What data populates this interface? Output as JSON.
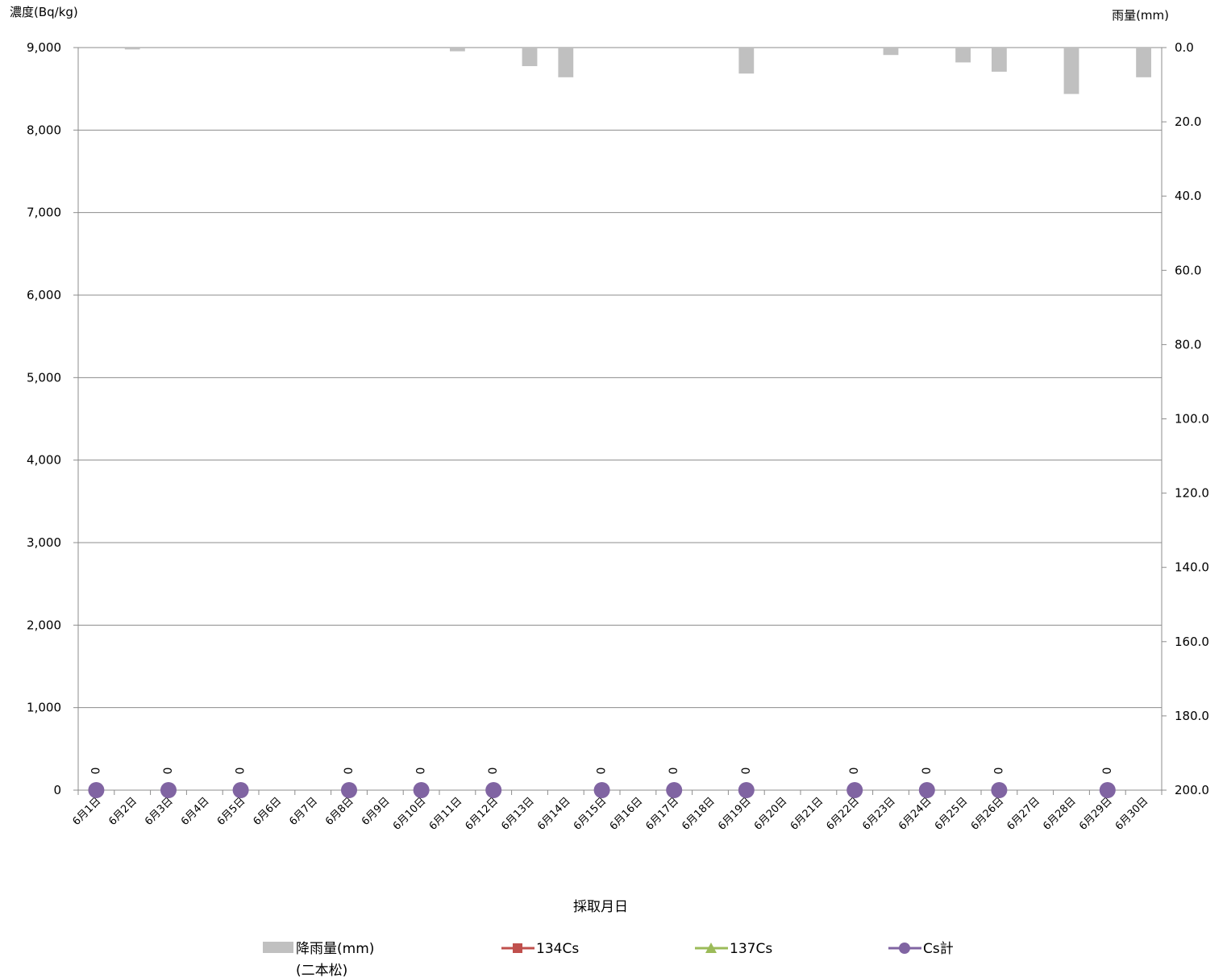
{
  "chart_data": {
    "type": "bar",
    "title": "",
    "xlabel": "採取月日",
    "ylabel_left": "濃度(Bq/kg)",
    "ylabel_right": "雨量(mm)",
    "y_left_range": [
      0,
      9000
    ],
    "y_left_ticks": [
      "0",
      "1,000",
      "2,000",
      "3,000",
      "4,000",
      "5,000",
      "6,000",
      "7,000",
      "8,000",
      "9,000"
    ],
    "y_right_range": [
      0,
      200
    ],
    "y_right_reversed": true,
    "y_right_ticks": [
      "0.0",
      "20.0",
      "40.0",
      "60.0",
      "80.0",
      "100.0",
      "120.0",
      "140.0",
      "160.0",
      "180.0",
      "200.0"
    ],
    "grid": true,
    "legend_position": "bottom",
    "categories": [
      "6月1日",
      "6月2日",
      "6月3日",
      "6月4日",
      "6月5日",
      "6月6日",
      "6月7日",
      "6月8日",
      "6月9日",
      "6月10日",
      "6月11日",
      "6月12日",
      "6月13日",
      "6月14日",
      "6月15日",
      "6月16日",
      "6月17日",
      "6月18日",
      "6月19日",
      "6月20日",
      "6月21日",
      "6月22日",
      "6月23日",
      "6月24日",
      "6月25日",
      "6月26日",
      "6月27日",
      "6月28日",
      "6月29日",
      "6月30日"
    ],
    "series": [
      {
        "name": "降雨量(mm)",
        "name_line2": "(二本松)",
        "type": "bar",
        "axis": "right",
        "color": "#c0c0c0",
        "values": [
          0,
          0.5,
          0,
          0,
          0,
          0,
          0,
          0,
          0,
          0,
          1,
          0,
          5,
          8,
          0,
          0,
          0,
          0,
          7,
          0,
          0,
          0,
          2,
          0,
          4,
          6.5,
          0,
          12.5,
          0,
          8
        ]
      },
      {
        "name": "134Cs",
        "type": "line",
        "axis": "left",
        "color": "#c0504d",
        "marker": "square",
        "values": [
          0,
          null,
          0,
          null,
          0,
          null,
          null,
          0,
          null,
          0,
          null,
          0,
          null,
          null,
          0,
          null,
          0,
          null,
          0,
          null,
          null,
          0,
          null,
          0,
          null,
          0,
          null,
          null,
          0,
          null
        ]
      },
      {
        "name": "137Cs",
        "type": "line",
        "axis": "left",
        "color": "#9bbb59",
        "marker": "triangle",
        "values": [
          0,
          null,
          0,
          null,
          0,
          null,
          null,
          0,
          null,
          0,
          null,
          0,
          null,
          null,
          0,
          null,
          0,
          null,
          0,
          null,
          null,
          0,
          null,
          0,
          null,
          0,
          null,
          null,
          0,
          null
        ]
      },
      {
        "name": "Cs計",
        "type": "line",
        "axis": "left",
        "color": "#8064a2",
        "marker": "circle",
        "data_labels": [
          "0",
          null,
          "0",
          null,
          "0",
          null,
          null,
          "0",
          null,
          "0",
          null,
          "0",
          null,
          null,
          "0",
          null,
          "0",
          null,
          "0",
          null,
          null,
          "0",
          null,
          "0",
          null,
          "0",
          null,
          null,
          "0",
          null
        ],
        "values": [
          0,
          null,
          0,
          null,
          0,
          null,
          null,
          0,
          null,
          0,
          null,
          0,
          null,
          null,
          0,
          null,
          0,
          null,
          0,
          null,
          null,
          0,
          null,
          0,
          null,
          0,
          null,
          null,
          0,
          null
        ]
      }
    ]
  }
}
